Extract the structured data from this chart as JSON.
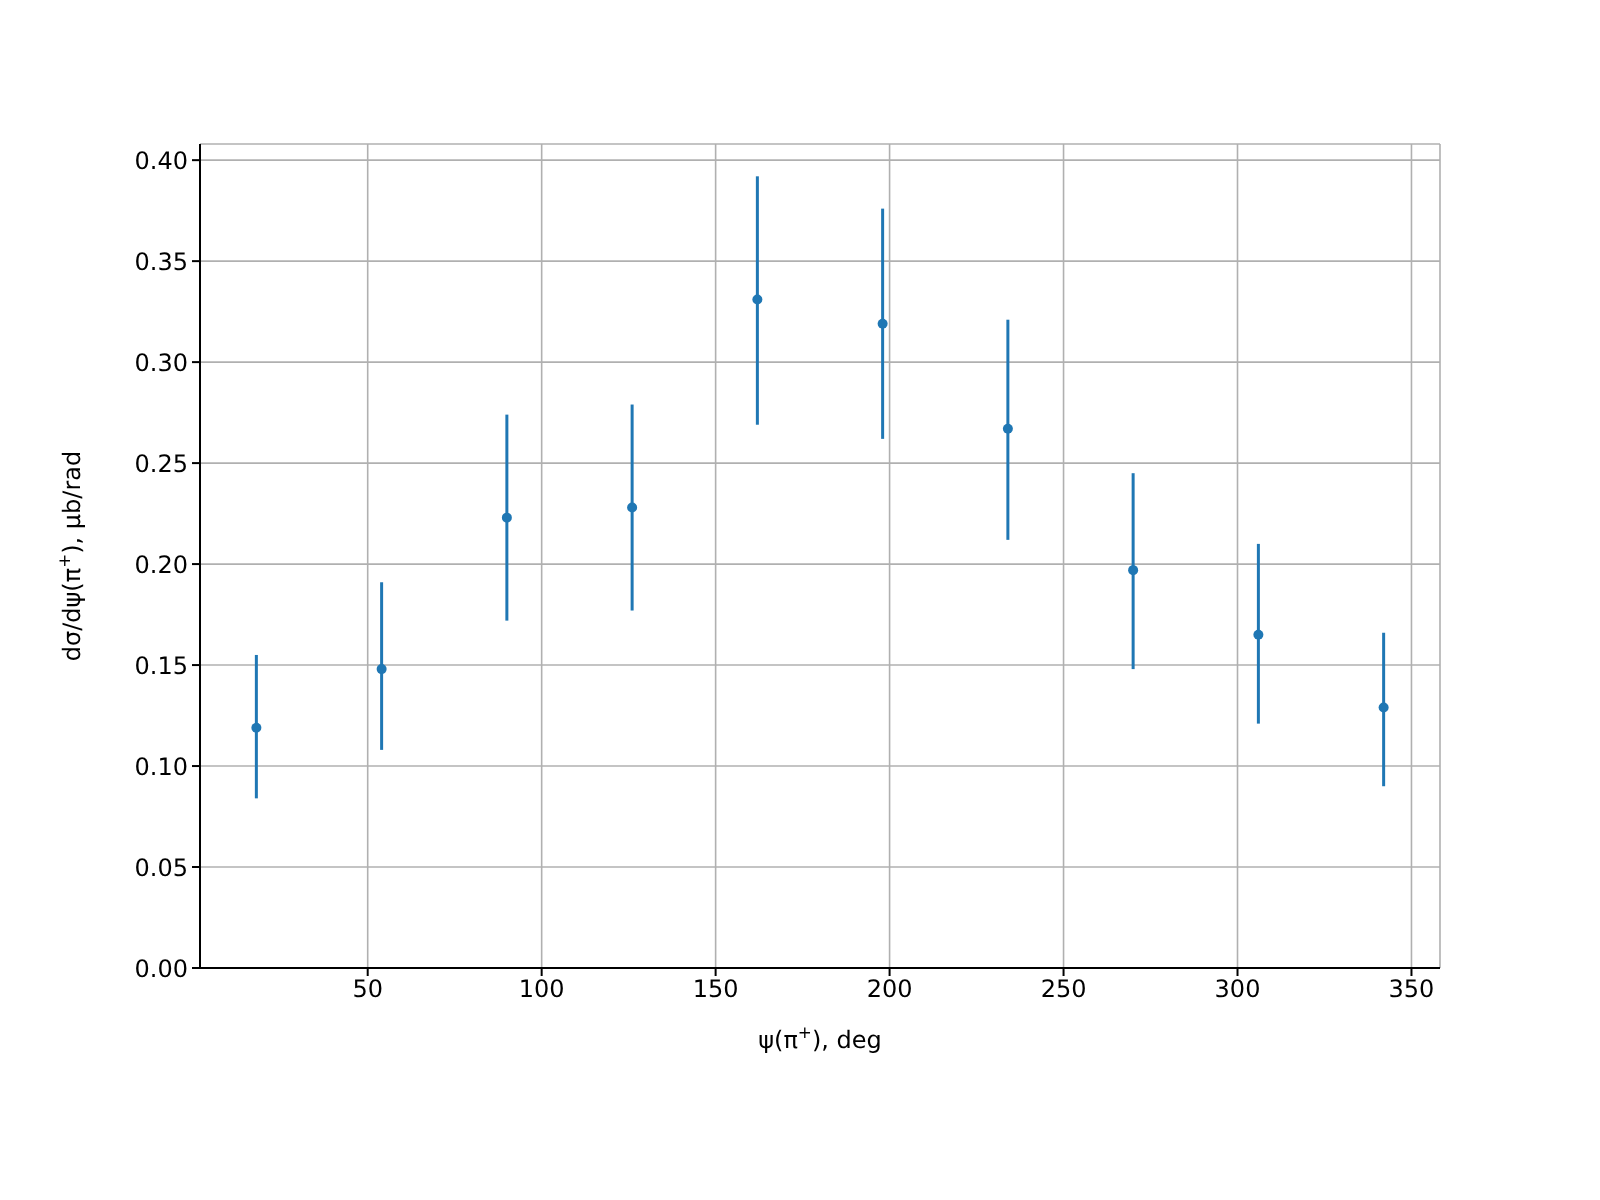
{
  "chart_data": {
    "type": "scatter",
    "xlabel": "ψ(π$^{+}$), deg",
    "ylabel": "dσ/dψ(π$^{+}$), μb/rad",
    "x": [
      18,
      54,
      90,
      126,
      162,
      198,
      234,
      270,
      306,
      342
    ],
    "series": [
      {
        "color": "#1f77b4",
        "values": [
          0.119,
          0.148,
          0.223,
          0.228,
          0.331,
          0.319,
          0.267,
          0.197,
          0.165,
          0.129
        ],
        "errors": [
          [
            0.084,
            0.155
          ],
          [
            0.108,
            0.191
          ],
          [
            0.172,
            0.274
          ],
          [
            0.177,
            0.279
          ],
          [
            0.269,
            0.392
          ],
          [
            0.262,
            0.376
          ],
          [
            0.212,
            0.321
          ],
          [
            0.148,
            0.245
          ],
          [
            0.121,
            0.21
          ],
          [
            0.09,
            0.166
          ]
        ]
      }
    ],
    "xlim": [
      1.8,
      358.2
    ],
    "xticks": [
      50,
      100,
      150,
      200,
      250,
      300,
      350
    ],
    "ylim": [
      0,
      0.408
    ],
    "yticks": [
      {
        "value": 0,
        "label": "0.00"
      },
      {
        "value": 0.05,
        "label": "0.05"
      },
      {
        "value": 0.1,
        "label": "0.10"
      },
      {
        "value": 0.15,
        "label": "0.15"
      },
      {
        "value": 0.2,
        "label": "0.20"
      },
      {
        "value": 0.25,
        "label": "0.25"
      },
      {
        "value": 0.3,
        "label": "0.30"
      },
      {
        "value": 0.35,
        "label": "0.35"
      },
      {
        "value": 0.4,
        "label": "0.40"
      }
    ],
    "grid": true,
    "marker": "circle"
  }
}
